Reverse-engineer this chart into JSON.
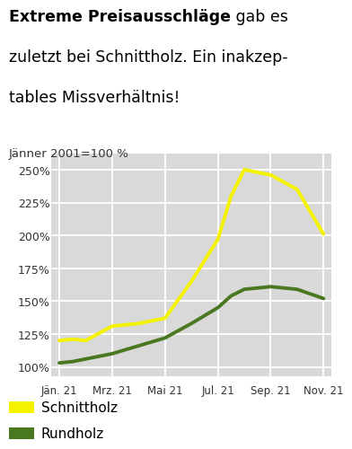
{
  "title_bold": "Extreme Preisausschläge",
  "title_normal_line1": " gab es",
  "title_line2": "zuletzt bei Schnittholz. Ein inakzep-",
  "title_line3": "tables Missverhältnis!",
  "subtitle": "Jänner 2001=100 %",
  "x_labels": [
    "Jän. 21",
    "Mrz. 21",
    "Mai 21",
    "Jul. 21",
    "Sep. 21",
    "Nov. 21"
  ],
  "x_positions": [
    0,
    2,
    4,
    6,
    8,
    10
  ],
  "schnittholz_x": [
    0,
    0.5,
    1,
    2,
    3,
    4,
    5,
    6,
    6.5,
    7,
    8,
    9,
    10
  ],
  "schnittholz_y": [
    120,
    121,
    120,
    131,
    133,
    137,
    165,
    197,
    230,
    250,
    246,
    235,
    201
  ],
  "rundholz_x": [
    0,
    0.5,
    1,
    2,
    3,
    4,
    5,
    6,
    6.5,
    7,
    8,
    9,
    10
  ],
  "rundholz_y": [
    103,
    104,
    106,
    110,
    116,
    122,
    133,
    145,
    154,
    159,
    161,
    159,
    152
  ],
  "schnittholz_color": "#f5f200",
  "rundholz_color": "#4a7820",
  "background_color": "#d9d9d9",
  "ylim": [
    93,
    262
  ],
  "yticks": [
    100,
    125,
    150,
    175,
    200,
    225,
    250
  ],
  "legend_schnittholz": "Schnittholz",
  "legend_rundholz": "Rundholz",
  "line_width": 2.8,
  "title_fontsize": 12.5,
  "subtitle_fontsize": 9.5,
  "tick_fontsize": 9,
  "legend_fontsize": 11
}
